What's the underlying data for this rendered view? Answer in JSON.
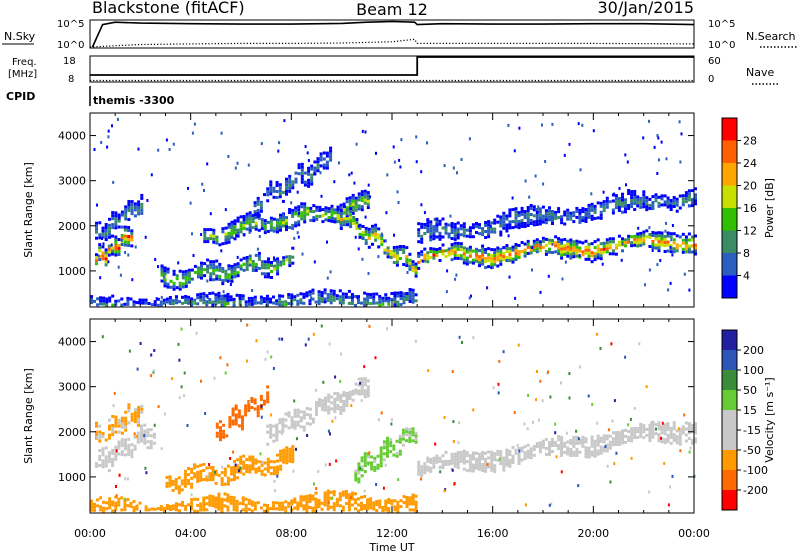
{
  "header": {
    "station": "Blackstone (fitACF)",
    "beam": "Beam 12",
    "date": "30/Jan/2015"
  },
  "summary_panels": {
    "nsky_label": "N.Sky",
    "nsky_ticks": [
      "10^5",
      "10^0"
    ],
    "nsearch_label": "N.Search",
    "nsearch_ticks": [
      "10^5",
      "10^0"
    ],
    "freq_label": "Freq.",
    "freq_unit": "[MHz]",
    "freq_ticks": [
      "18",
      "8"
    ],
    "nave_label": "Nave",
    "nave_ticks": [
      "60",
      "0"
    ],
    "cpid_label": "CPID",
    "cpid_value": "themis -3300"
  },
  "axes": {
    "xlabel": "Time UT",
    "xticks": [
      "00:00",
      "04:00",
      "08:00",
      "12:00",
      "16:00",
      "20:00",
      "00:00"
    ],
    "ylabel": "Slant Range [km]",
    "yticks": [
      "4000",
      "3000",
      "2000",
      "1000"
    ]
  },
  "colors": {
    "power_scale": [
      "#0000ff",
      "#2a5fbf",
      "#3a8c63",
      "#31c000",
      "#c8e000",
      "#ffa500",
      "#ff6000",
      "#ff0000"
    ],
    "velocity_scale": [
      "#2020a0",
      "#2c55b8",
      "#3a8c3a",
      "#66cc33",
      "#c8c8c8",
      "#c8c8c8",
      "#ff9a00",
      "#ff6a00",
      "#ff0000"
    ],
    "ground_scatter": "#c8c8c8"
  },
  "chart_data": [
    {
      "type": "line",
      "title": "N.Sky / N.Search",
      "yscale": "log",
      "series": [
        {
          "style": "solid",
          "x": [
            0.1,
            0.5,
            1,
            2,
            4,
            6,
            8,
            10,
            11,
            12,
            12.9,
            13.0,
            14,
            16,
            18,
            20,
            22,
            24
          ],
          "y": [
            1,
            20000,
            60000,
            40000,
            30000,
            25000,
            25000,
            35000,
            60000,
            80000,
            60000,
            20000,
            30000,
            25000,
            25000,
            30000,
            30000,
            20000
          ]
        },
        {
          "style": "dotted",
          "x": [
            0,
            2,
            4,
            6,
            8,
            10,
            12,
            12.9,
            13.0,
            16,
            20,
            24
          ],
          "y": [
            1,
            3,
            4,
            5,
            5,
            6,
            10,
            30,
            5,
            5,
            5,
            4
          ]
        }
      ]
    },
    {
      "type": "line",
      "title": "Freq. / Nave",
      "ylim": [
        8,
        18
      ],
      "series": [
        {
          "style": "solid",
          "x": [
            0,
            13.0,
            13.0,
            24
          ],
          "y": [
            10.5,
            10.5,
            18,
            18
          ]
        },
        {
          "style": "dotted",
          "x": [
            0,
            24
          ],
          "y": [
            8.2,
            8.2
          ]
        }
      ]
    },
    {
      "type": "heatmap",
      "xlabel": "Time UT",
      "ylabel": "Slant Range [km]",
      "xlim": [
        0,
        24
      ],
      "ylim": [
        200,
        4500
      ],
      "colorbar": {
        "label": "Power [dB]",
        "ticks": [
          "28",
          "24",
          "20",
          "16",
          "12",
          "8",
          "4"
        ],
        "range": [
          0,
          30
        ]
      },
      "features": [
        {
          "t0": 0.2,
          "t1": 1.6,
          "range_start": 1250,
          "range_end": 1850,
          "peak": 28
        },
        {
          "t0": 0.2,
          "t1": 2.0,
          "range_start": 1800,
          "range_end": 2500,
          "peak": 10
        },
        {
          "t0": 2.8,
          "t1": 8.0,
          "range_start": 850,
          "range_end": 1250,
          "peak": 14
        },
        {
          "t0": 4.5,
          "t1": 11.0,
          "range_start": 1800,
          "range_end": 2500,
          "peak": 15
        },
        {
          "t0": 6.5,
          "t1": 9.5,
          "range_start": 2500,
          "range_end": 3500,
          "peak": 8
        },
        {
          "t0": 9.8,
          "t1": 12.9,
          "range_start": 2300,
          "range_end": 1100,
          "peak": 20
        },
        {
          "t0": 13.0,
          "t1": 24.0,
          "range_start": 1300,
          "range_end": 1700,
          "peak": 24
        },
        {
          "t0": 13.0,
          "t1": 24.0,
          "range_start": 1800,
          "range_end": 2700,
          "peak": 8
        },
        {
          "t0": 0.0,
          "t1": 12.9,
          "range_start": 200,
          "range_end": 400,
          "peak": 10
        }
      ]
    },
    {
      "type": "heatmap",
      "xlabel": "Time UT",
      "ylabel": "Slant Range [km]",
      "xlim": [
        0,
        24
      ],
      "ylim": [
        200,
        4500
      ],
      "colorbar": {
        "label": "Velocity [m s⁻¹]",
        "ticks": [
          "200",
          "100",
          "50",
          "15",
          "-15",
          "-50",
          "-100",
          "-200"
        ],
        "range": [
          -250,
          250
        ]
      },
      "features": [
        {
          "t0": 0.2,
          "t1": 2.5,
          "range_start": 1300,
          "range_end": 2000,
          "velocity": 0,
          "ground_scatter": true
        },
        {
          "t0": 0.2,
          "t1": 2.0,
          "range_start": 1900,
          "range_end": 2500,
          "velocity": -60
        },
        {
          "t0": 5.0,
          "t1": 7.0,
          "range_start": 2000,
          "range_end": 2800,
          "velocity": -180
        },
        {
          "t0": 3.0,
          "t1": 8.0,
          "range_start": 900,
          "range_end": 1400,
          "velocity": -70
        },
        {
          "t0": 7.0,
          "t1": 11.0,
          "range_start": 2000,
          "range_end": 3000,
          "velocity": 0,
          "ground_scatter": true
        },
        {
          "t0": 10.5,
          "t1": 12.9,
          "range_start": 1100,
          "range_end": 2000,
          "velocity": 25
        },
        {
          "t0": 13.0,
          "t1": 24.0,
          "range_start": 1200,
          "range_end": 2100,
          "velocity": 0,
          "ground_scatter": true
        },
        {
          "t0": 0.0,
          "t1": 12.9,
          "range_start": 250,
          "range_end": 450,
          "velocity": -70
        }
      ]
    }
  ]
}
